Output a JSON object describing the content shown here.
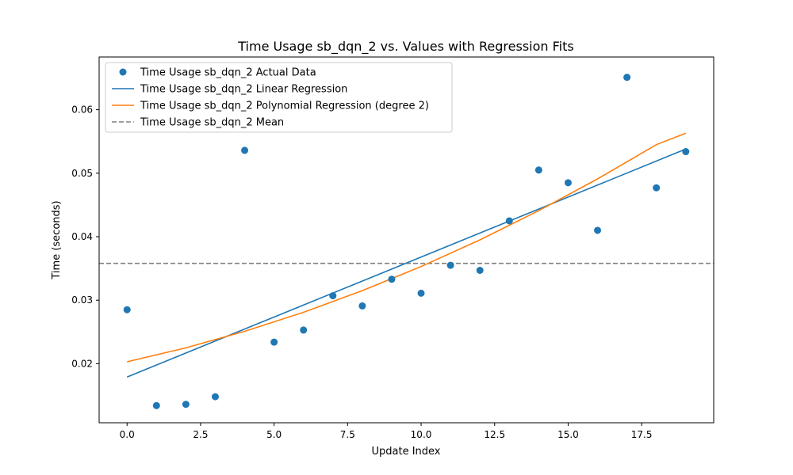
{
  "chart_data": {
    "type": "scatter",
    "title": "Time Usage sb_dqn_2 vs. Values with Regression Fits",
    "xlabel": "Update Index",
    "ylabel": "Time (seconds)",
    "xlim": [
      -0.95,
      19.95
    ],
    "ylim": [
      0.0107,
      0.0683
    ],
    "xticks": [
      0.0,
      2.5,
      5.0,
      7.5,
      10.0,
      12.5,
      15.0,
      17.5
    ],
    "xtick_labels": [
      "0.0",
      "2.5",
      "5.0",
      "7.5",
      "10.0",
      "12.5",
      "15.0",
      "17.5"
    ],
    "yticks": [
      0.02,
      0.03,
      0.04,
      0.05,
      0.06
    ],
    "ytick_labels": [
      "0.02",
      "0.03",
      "0.04",
      "0.05",
      "0.06"
    ],
    "grid": false,
    "legend_position": "upper-left",
    "series": [
      {
        "name": "Time Usage sb_dqn_2 Actual Data",
        "kind": "scatter",
        "color": "#1f77b4",
        "x": [
          0,
          1,
          2,
          3,
          4,
          5,
          6,
          7,
          8,
          9,
          10,
          11,
          12,
          13,
          14,
          15,
          16,
          17,
          18,
          19
        ],
        "y": [
          0.0285,
          0.0134,
          0.0136,
          0.0148,
          0.0536,
          0.0234,
          0.0253,
          0.0307,
          0.0291,
          0.0333,
          0.0311,
          0.0355,
          0.0347,
          0.0425,
          0.0505,
          0.0485,
          0.041,
          0.0651,
          0.0477,
          0.0534
        ]
      },
      {
        "name": "Time Usage sb_dqn_2 Linear Regression",
        "kind": "line",
        "color": "#1f77b4",
        "x": [
          0,
          19
        ],
        "y": [
          0.0179,
          0.0538
        ]
      },
      {
        "name": "Time Usage sb_dqn_2 Polynomial Regression (degree 2)",
        "kind": "line",
        "color": "#ff7f0e",
        "x": [
          0,
          2,
          4,
          6,
          8,
          10,
          12,
          14,
          16,
          18,
          19
        ],
        "y": [
          0.0203,
          0.0225,
          0.0251,
          0.0281,
          0.0315,
          0.0353,
          0.0395,
          0.0441,
          0.0491,
          0.0545,
          0.0563
        ]
      },
      {
        "name": "Time Usage sb_dqn_2 Mean",
        "kind": "hline",
        "color": "#808080",
        "y": 0.0358
      }
    ]
  }
}
